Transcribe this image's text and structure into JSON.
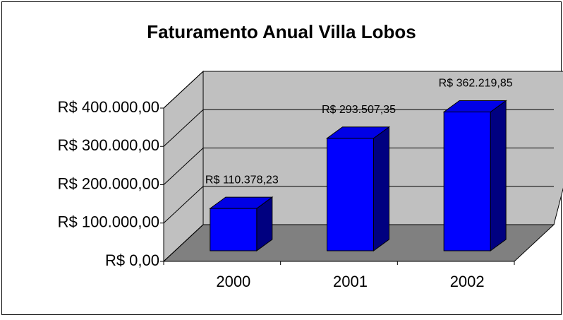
{
  "chart_data": {
    "type": "bar3d",
    "title": "Faturamento Anual Villa Lobos",
    "categories": [
      "2000",
      "2001",
      "2002"
    ],
    "values": [
      110378.23,
      293507.35,
      362219.85
    ],
    "value_labels": [
      "R$ 110.378,23",
      "R$ 293.507,35",
      "R$ 362.219,85"
    ],
    "color": "#0000ff",
    "ylim": [
      0,
      400000
    ],
    "yticks": [
      {
        "value": 0,
        "label": "R$ 0,00"
      },
      {
        "value": 100000,
        "label": "R$ 100.000,00"
      },
      {
        "value": 200000,
        "label": "R$ 200.000,00"
      },
      {
        "value": 300000,
        "label": "R$ 300.000,00"
      },
      {
        "value": 400000,
        "label": "R$ 400.000,00"
      }
    ],
    "grid": true
  }
}
